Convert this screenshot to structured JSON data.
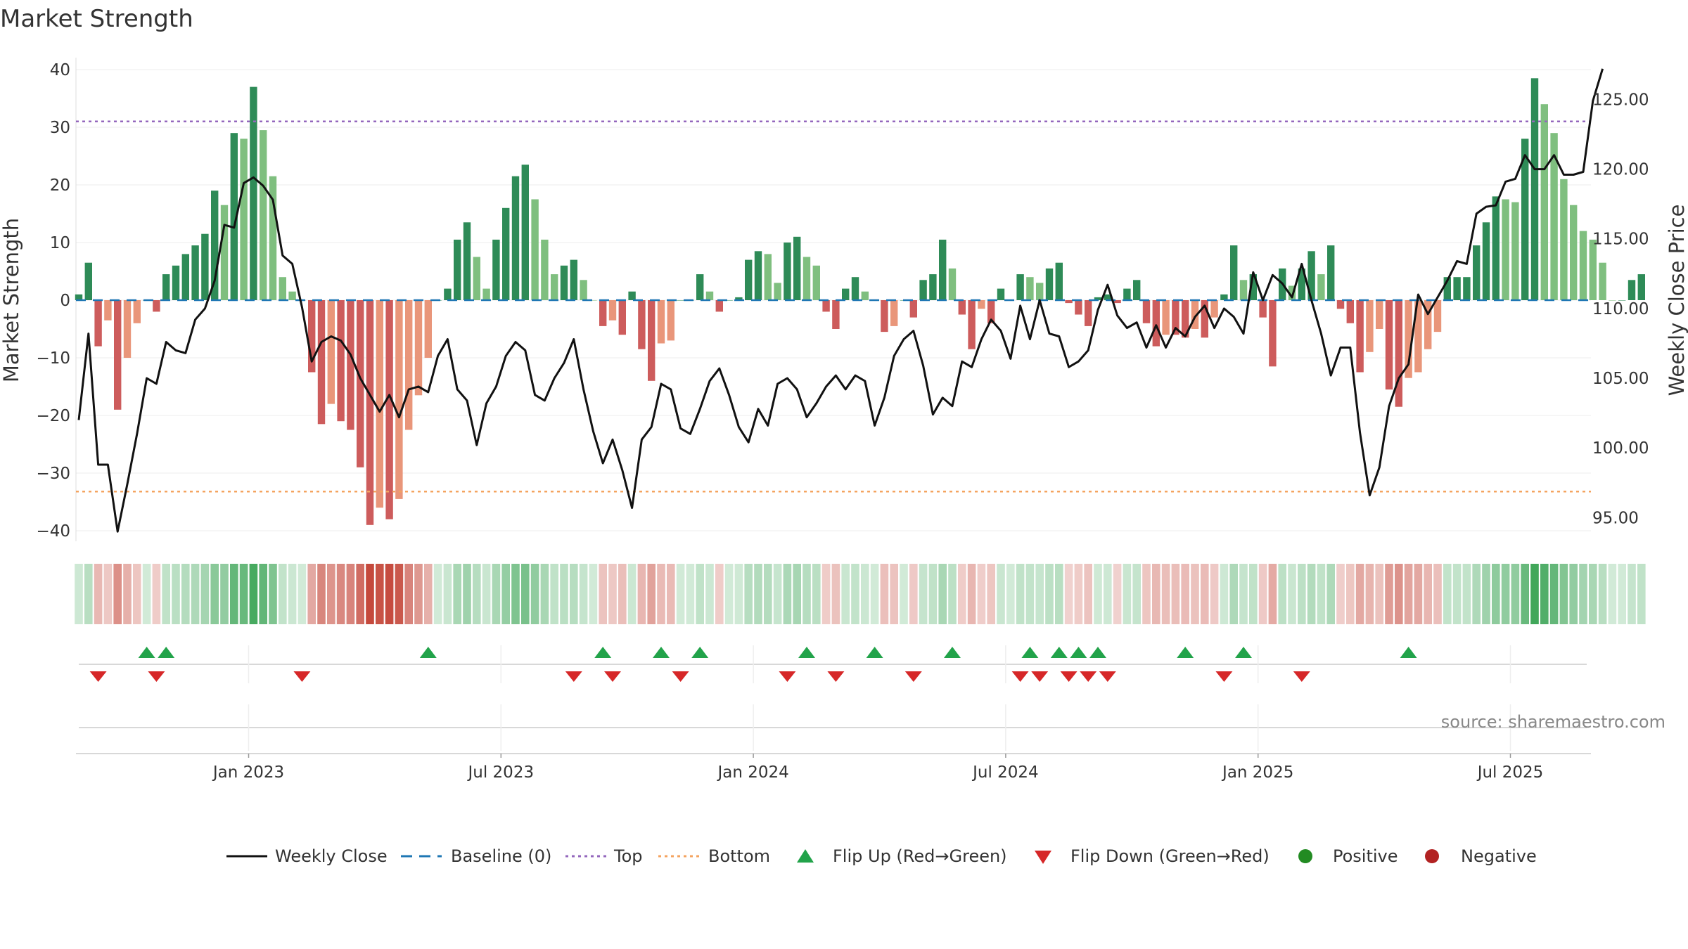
{
  "chart_data": {
    "type": "bar",
    "title": "Market Strength",
    "ylabel_left": "Market Strength",
    "ylabel_right": "Weekly Close Price",
    "ylim_left": [
      -44,
      42
    ],
    "ylim_right": [
      93.0,
      128.6
    ],
    "yticks_left": [
      40,
      30,
      20,
      10,
      0,
      -10,
      -20,
      -30,
      -40
    ],
    "ytick_labels_left": [
      "40",
      "30",
      "20",
      "10",
      "0",
      "−10",
      "−20",
      "−30",
      "−40"
    ],
    "yticks_right": [
      125,
      120,
      115,
      110,
      105,
      100,
      95
    ],
    "ytick_labels_right": [
      "125.00",
      "120.00",
      "115.00",
      "110.00",
      "105.00",
      "100.00",
      "95.00"
    ],
    "top_threshold": 31,
    "bottom_threshold": -33.2,
    "baseline": 0,
    "x_ticks": [
      {
        "week": 17.5,
        "label": "Jan 2023"
      },
      {
        "week": 43.5,
        "label": "Jul 2023"
      },
      {
        "week": 69.5,
        "label": "Jan 2024"
      },
      {
        "week": 95.5,
        "label": "Jul 2024"
      },
      {
        "week": 121.5,
        "label": "Jan 2025"
      },
      {
        "week": 147.5,
        "label": "Jul 2025"
      }
    ],
    "strength": [
      1,
      6.5,
      -8,
      -3.5,
      -19,
      -10,
      -4,
      0,
      -2,
      4.5,
      6,
      8,
      9.5,
      11.5,
      19,
      16.5,
      29,
      28,
      37,
      29.5,
      21.5,
      4,
      1.5,
      0,
      -12.5,
      -21.5,
      -18,
      -21,
      -22.5,
      -29,
      -39,
      -36,
      -38,
      -34.5,
      -22.5,
      -16.5,
      -10,
      0,
      2,
      10.5,
      13.5,
      7.5,
      2,
      10.5,
      16,
      21.5,
      23.5,
      17.5,
      10.5,
      4.5,
      6,
      7,
      3.5,
      0,
      -4.5,
      -3.5,
      -6,
      1.5,
      -8.5,
      -14,
      -7.5,
      -7,
      0,
      0,
      4.5,
      1.5,
      -2,
      0,
      0.5,
      7,
      8.5,
      8,
      3,
      10,
      11,
      7.5,
      6,
      -2,
      -5,
      2,
      4,
      1.5,
      0,
      -5.5,
      -4.5,
      0,
      -3,
      3.5,
      4.5,
      10.5,
      5.5,
      -2.5,
      -8.5,
      -1.5,
      -4,
      2,
      0,
      4.5,
      4,
      3,
      5.5,
      6.5,
      -0.5,
      -2.5,
      -4.5,
      0.5,
      1,
      -0.5,
      2,
      3.5,
      -4,
      -8,
      -6,
      -6,
      -6.5,
      -5,
      -6.5,
      -3,
      1,
      9.5,
      3.5,
      4.5,
      -3,
      -11.5,
      5.5,
      2.5,
      5.5,
      8.5,
      4.5,
      9.5,
      -1.5,
      -4,
      -12.5,
      -9,
      -5,
      -15.5,
      -18.5,
      -13.5,
      -12.5,
      -8.5,
      -5.5,
      4,
      4,
      4,
      9.5,
      13.5,
      18,
      17.5,
      17,
      28,
      38.5,
      34,
      29,
      21,
      16.5,
      12,
      10.5,
      6.5,
      0,
      0,
      3.5,
      4.5
    ],
    "weekly_close": [
      102,
      108.2,
      98.8,
      98.8,
      94,
      97.4,
      101,
      105,
      104.6,
      107.6,
      107,
      106.8,
      109.2,
      110,
      112,
      116,
      115.8,
      119,
      119.4,
      118.8,
      117.8,
      113.8,
      113.2,
      110.1,
      106.2,
      107.6,
      108,
      107.7,
      106.7,
      105,
      103.8,
      102.6,
      103.8,
      102.2,
      104.2,
      104.4,
      104,
      106.6,
      107.8,
      104.2,
      103.4,
      100.2,
      103.2,
      104.4,
      106.6,
      107.6,
      107,
      103.8,
      103.4,
      105,
      106.1,
      107.8,
      104.2,
      101.2,
      98.9,
      100.6,
      98.4,
      95.7,
      100.6,
      101.5,
      104.6,
      104.2,
      101.4,
      101,
      102.8,
      104.8,
      105.7,
      103.8,
      101.5,
      100.4,
      102.8,
      101.6,
      104.6,
      105,
      104.2,
      102.2,
      103.2,
      104.4,
      105.2,
      104.2,
      105.2,
      104.8,
      101.6,
      103.6,
      106.6,
      107.8,
      108.4,
      105.9,
      102.4,
      103.6,
      103,
      106.2,
      105.8,
      107.8,
      109.2,
      108.4,
      106.4,
      110.2,
      107.8,
      110.6,
      108.2,
      108,
      105.8,
      106.2,
      107,
      109.9,
      111.7,
      109.5,
      108.6,
      109,
      107.2,
      108.8,
      107.2,
      108.6,
      108,
      109.4,
      110.2,
      108.6,
      110,
      109.4,
      108.2,
      112.6,
      110.6,
      112.4,
      111.8,
      110.8,
      113.2,
      110.6,
      108.2,
      105.2,
      107.2,
      107.2,
      101.1,
      96.6,
      98.6,
      103,
      105,
      106,
      111,
      109.6,
      110.8,
      112,
      113.4,
      113.2,
      116.8,
      117.3,
      117.4,
      119.1,
      119.3,
      121,
      120,
      120,
      121,
      119.6,
      119.6,
      119.8,
      124.9,
      127.2
    ]
  },
  "flips_up": [
    7,
    9,
    36,
    54,
    60,
    64,
    75,
    82,
    90,
    98,
    101,
    103,
    105,
    114,
    120,
    137
  ],
  "flips_down": [
    2,
    8,
    23,
    51,
    55,
    62,
    73,
    78,
    86,
    97,
    99,
    102,
    104,
    106,
    118,
    126
  ],
  "source": "source: sharemaestro.com",
  "legend": {
    "weekly_close": "Weekly Close",
    "baseline": "Baseline (0)",
    "top": "Top",
    "bottom": "Bottom",
    "flip_up": "Flip Up (Red→Green)",
    "flip_down": "Flip Down (Green→Red)",
    "positive": "Positive",
    "negative": "Negative"
  },
  "colors": {
    "positive_strong": "#2e8b57",
    "positive_light": "#7fbf7f",
    "negative_strong": "#cd5c5c",
    "negative_light": "#e9967a",
    "close_line": "#111111",
    "baseline": "#1f77b4",
    "top": "#9467bd",
    "bottom": "#f4a460",
    "flip_up": "#22a34a",
    "flip_down": "#d62728",
    "positive_dot": "#228b22",
    "negative_dot": "#b22222"
  }
}
